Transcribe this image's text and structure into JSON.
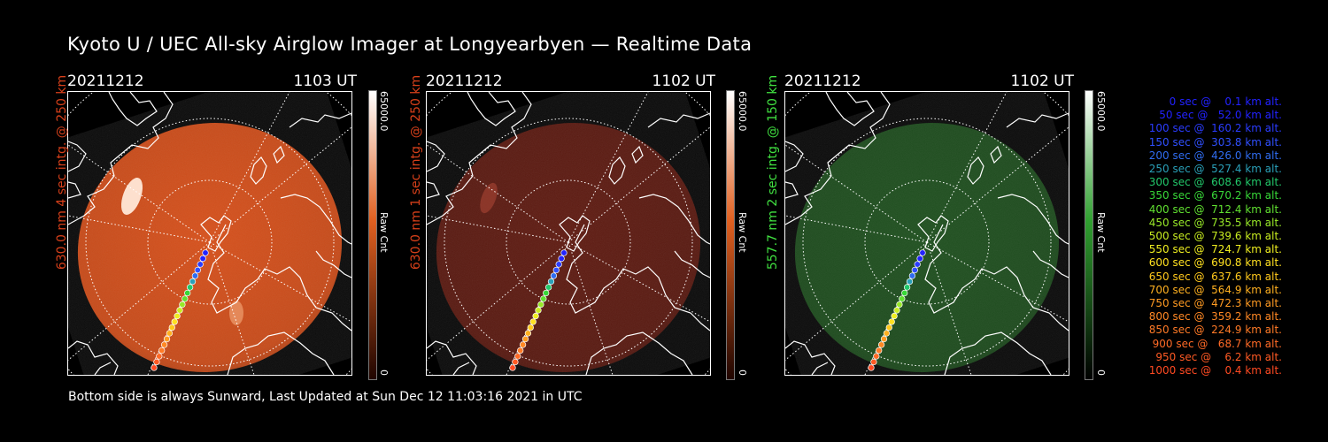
{
  "title": "Kyoto U / UEC All-sky Airglow Imager at Longyearbyen — Realtime Data",
  "footer": "Bottom side is always Sunward, Last Updated at Sun Dec 12 11:03:16 2021 in UTC",
  "panels": [
    {
      "date": "20211212",
      "time": "1103 UT",
      "ylabel": "630.0 nm 4 sec intg. @ 250 km",
      "color": "#d84a12",
      "label_color": "#d8401a",
      "max_label": "65000.0",
      "min_label": "0",
      "unit": "Raw Cnt",
      "cbar_top": "#ffffff",
      "cbar_mid": "#e06020",
      "cbar_bottom": "#200500"
    },
    {
      "date": "20211212",
      "time": "1102 UT",
      "ylabel": "630.0 nm 1 sec intg. @ 250 km",
      "color": "#5a1208",
      "label_color": "#d8401a",
      "max_label": "65000.0",
      "min_label": "0",
      "unit": "Raw Cnt",
      "cbar_top": "#ffffff",
      "cbar_mid": "#e06020",
      "cbar_bottom": "#200500"
    },
    {
      "date": "20211212",
      "time": "1102 UT",
      "ylabel": "557.7 nm 2 sec intg. @ 150 km",
      "color": "#164a16",
      "label_color": "#40e040",
      "max_label": "65000.0",
      "min_label": "0",
      "unit": "Raw Cnt",
      "cbar_top": "#ffffff",
      "cbar_mid": "#30a030",
      "cbar_bottom": "#000000"
    }
  ],
  "legend": [
    {
      "text": "   0 sec @    0.1 km alt.",
      "color": "#2222ff"
    },
    {
      "text": "  50 sec @   52.0 km alt.",
      "color": "#2222ff"
    },
    {
      "text": " 100 sec @  160.2 km alt.",
      "color": "#2a3cff"
    },
    {
      "text": " 150 sec @  303.8 km alt.",
      "color": "#3050ff"
    },
    {
      "text": " 200 sec @  426.0 km alt.",
      "color": "#2f6cf0"
    },
    {
      "text": " 250 sec @  527.4 km alt.",
      "color": "#2aa0b8"
    },
    {
      "text": " 300 sec @  608.6 km alt.",
      "color": "#22c86a"
    },
    {
      "text": " 350 sec @  670.2 km alt.",
      "color": "#38d838"
    },
    {
      "text": " 400 sec @  712.4 km alt.",
      "color": "#60e030"
    },
    {
      "text": " 450 sec @  735.5 km alt.",
      "color": "#98e828"
    },
    {
      "text": " 500 sec @  739.6 km alt.",
      "color": "#c8ec20"
    },
    {
      "text": " 550 sec @  724.7 km alt.",
      "color": "#eeee20"
    },
    {
      "text": " 600 sec @  690.8 km alt.",
      "color": "#ffe020"
    },
    {
      "text": " 650 sec @  637.6 km alt.",
      "color": "#ffc81c"
    },
    {
      "text": " 700 sec @  564.9 km alt.",
      "color": "#ffb020"
    },
    {
      "text": " 750 sec @  472.3 km alt.",
      "color": "#ff9a22"
    },
    {
      "text": " 800 sec @  359.2 km alt.",
      "color": "#ff8824"
    },
    {
      "text": " 850 sec @  224.9 km alt.",
      "color": "#ff7a26"
    },
    {
      "text": " 900 sec @   68.7 km alt.",
      "color": "#ff6a26"
    },
    {
      "text": " 950 sec @    6.2 km alt.",
      "color": "#ff5a24"
    },
    {
      "text": "1000 sec @    0.4 km alt.",
      "color": "#ff4a22"
    }
  ]
}
